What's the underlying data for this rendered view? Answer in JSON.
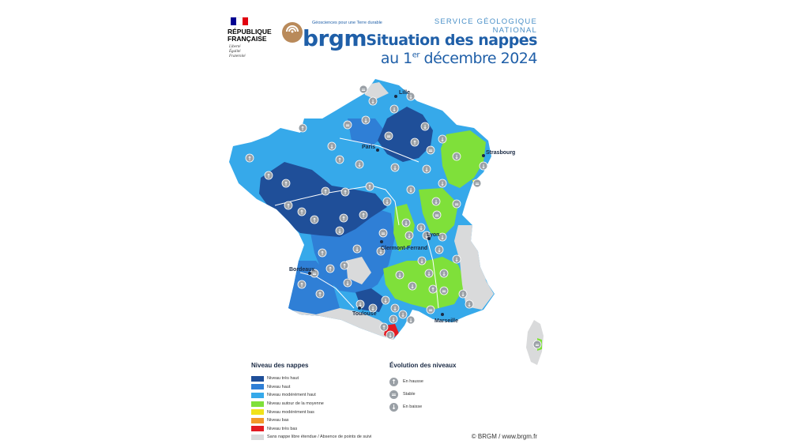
{
  "header": {
    "republic_line1": "RÉPUBLIQUE",
    "republic_line2": "FRANÇAISE",
    "motto_1": "Liberté",
    "motto_2": "Égalité",
    "motto_3": "Fraternité",
    "brgm_wordmark": "brgm",
    "brgm_tagline": "Géosciences pour une Terre durable",
    "service": "SERVICE GÉOLOGIQUE NATIONAL",
    "title_line1": "Situation des nappes",
    "title_line2_prefix": "au 1",
    "title_line2_sup": "er",
    "title_line2_suffix": " décembre 2024"
  },
  "colors": {
    "tres_haut": "#1f4f99",
    "haut": "#2f7fd6",
    "moderement_haut": "#36a9ea",
    "autour_moyenne": "#7fe03a",
    "moderement_bas": "#f0e21a",
    "bas": "#f2992a",
    "tres_bas": "#e31b23",
    "sans_nappe": "#d9dadb",
    "icon_grey": "#9aa0a6",
    "title_blue": "#1f5fa8"
  },
  "cities": [
    {
      "name": "Lille"
    },
    {
      "name": "Paris"
    },
    {
      "name": "Strasbourg"
    },
    {
      "name": "Lyon"
    },
    {
      "name": "Clermont-Ferrand"
    },
    {
      "name": "Bordeaux"
    },
    {
      "name": "Toulouse"
    },
    {
      "name": "Marseille"
    }
  ],
  "legend": {
    "title": "Niveau des nappes",
    "items": [
      {
        "label": "Niveau très haut",
        "color_key": "tres_haut"
      },
      {
        "label": "Niveau haut",
        "color_key": "haut"
      },
      {
        "label": "Niveau modérément haut",
        "color_key": "moderement_haut"
      },
      {
        "label": "Niveau autour de la moyenne",
        "color_key": "autour_moyenne"
      },
      {
        "label": "Niveau modérément bas",
        "color_key": "moderement_bas"
      },
      {
        "label": "Niveau bas",
        "color_key": "bas"
      },
      {
        "label": "Niveau très bas",
        "color_key": "tres_bas"
      },
      {
        "label": "Sans nappe libre étendue / Absence de points de suivi",
        "color_key": "sans_nappe"
      }
    ]
  },
  "evolution": {
    "title": "Évolution des niveaux",
    "items": [
      {
        "label": "En hausse",
        "icon": "arrow-up-icon",
        "glyph": "↑"
      },
      {
        "label": "Stable",
        "icon": "equals-icon",
        "glyph": "="
      },
      {
        "label": "En baisse",
        "icon": "arrow-down-icon",
        "glyph": "↓"
      }
    ]
  },
  "credit": "© BRGM / www.brgm.fr"
}
